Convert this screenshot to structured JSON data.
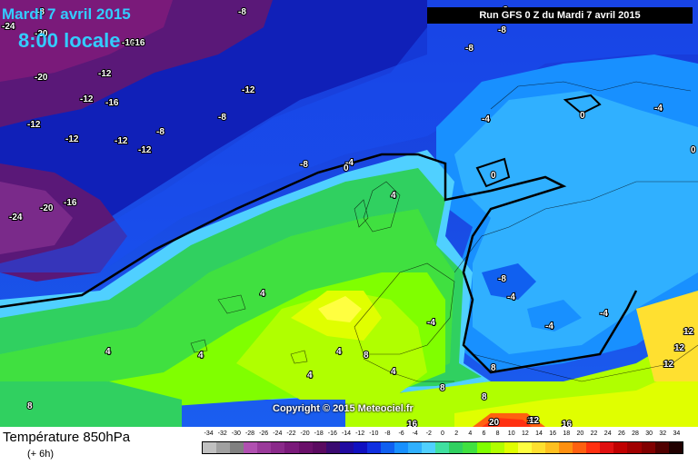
{
  "header": {
    "date_line": "Mardi 7 avril 2015",
    "time_line": "8:00 locale",
    "run_line": "Run GFS 0 Z du Mardi 7 avril 2015"
  },
  "copyright": "Copyright © 2015 Meteociel.fr",
  "footer": {
    "title": "Température 850hPa",
    "subtitle": "(+ 6h)"
  },
  "scale": {
    "labels": [
      "-34",
      "-32",
      "-30",
      "-28",
      "-26",
      "-24",
      "-22",
      "-20",
      "-18",
      "-16",
      "-14",
      "-12",
      "-10",
      "-8",
      "-6",
      "-4",
      "-2",
      "0",
      "2",
      "4",
      "6",
      "8",
      "10",
      "12",
      "14",
      "16",
      "18",
      "20",
      "22",
      "24",
      "26",
      "28",
      "30",
      "32",
      "34"
    ],
    "colors": [
      "#c0c0c0",
      "#a0a0a0",
      "#808080",
      "#b050b0",
      "#9a3a9a",
      "#8a2a8a",
      "#7a1a7a",
      "#6a106a",
      "#5a0a60",
      "#3a0a70",
      "#200aa0",
      "#1010c0",
      "#1030e0",
      "#1060f0",
      "#1890ff",
      "#30b0ff",
      "#50d0ff",
      "#40e0a0",
      "#30d060",
      "#40e040",
      "#80ff00",
      "#b0ff00",
      "#e0ff00",
      "#ffff40",
      "#ffe030",
      "#ffc020",
      "#ff9010",
      "#ff6010",
      "#ff3010",
      "#e01010",
      "#c00000",
      "#a00000",
      "#800000",
      "#500000",
      "#200000"
    ]
  },
  "isotherm_labels": [
    "-24",
    "-20",
    "-20",
    "-16",
    "-16",
    "-12",
    "-12",
    "-16",
    "-12",
    "-12",
    "-12",
    "-8",
    "-12",
    "-8",
    "-12",
    "-8",
    "-8",
    "-20",
    "-16",
    "-24",
    "-8",
    "-4",
    "-8",
    "0",
    "-4",
    "0",
    "4",
    "0",
    "-4",
    "4",
    "4",
    "4",
    "4",
    "4",
    "-8",
    "-4",
    "-4",
    "-4",
    "12",
    "12",
    "12",
    "12",
    "4",
    "8",
    "8",
    "8",
    "8",
    "20",
    "12",
    "16",
    "20",
    "16",
    "8",
    "8",
    "0",
    "-8",
    "-4",
    "-8"
  ],
  "colors": {
    "run_box_bg": "#000000",
    "date_text": "#33ccff"
  }
}
